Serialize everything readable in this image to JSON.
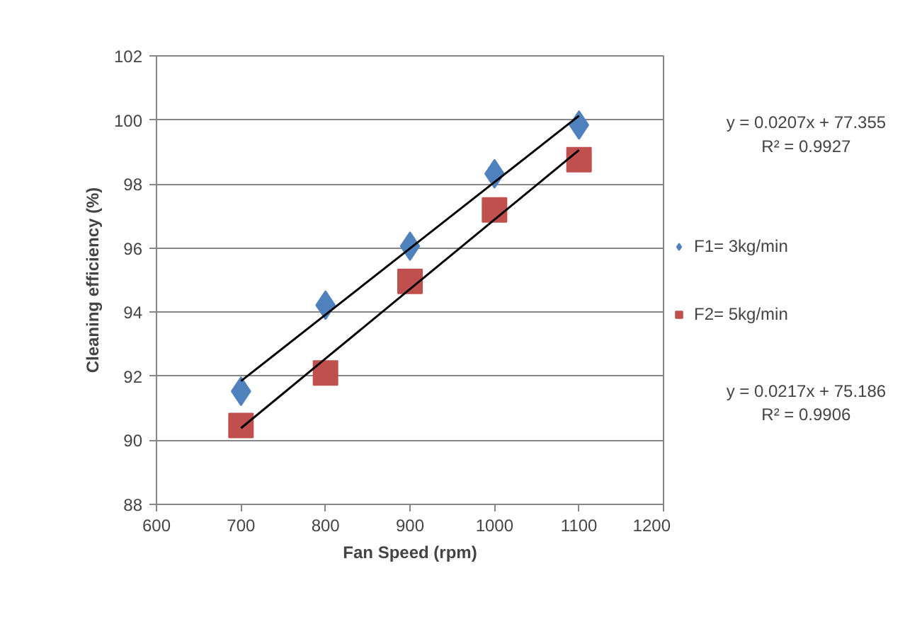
{
  "chart_data": {
    "type": "scatter",
    "xlabel": "Fan Speed (rpm)",
    "ylabel": "Cleaning efficiency (%)",
    "x": [
      700,
      800,
      900,
      1000,
      1100
    ],
    "series": [
      {
        "name": "F1= 3kg/min",
        "color": "#4f81bd",
        "marker": "diamond",
        "values": [
          91.53,
          94.22,
          96.06,
          98.32,
          99.84
        ]
      },
      {
        "name": "F2= 5kg/min",
        "color": "#c0504d",
        "marker": "square",
        "values": [
          90.46,
          92.1,
          94.96,
          97.19,
          98.76
        ]
      },
      {
        "type": "line",
        "color": "#000000",
        "values": [
          91.85,
          93.92,
          95.99,
          98.06,
          100.13
        ]
      },
      {
        "type": "line",
        "color": "#000000",
        "values": [
          90.38,
          92.55,
          94.72,
          96.89,
          99.06
        ]
      }
    ],
    "xlim": [
      600,
      1200
    ],
    "xticks": [
      600,
      700,
      800,
      900,
      1000,
      1100,
      1200
    ],
    "ylim": [
      88,
      102
    ],
    "yticks": [
      88,
      90,
      92,
      94,
      96,
      98,
      100,
      102
    ],
    "grid": "y",
    "legend": "right",
    "annotations": [
      "y = 0.0207x + 77.355\nR² = 0.9927",
      "y = 0.0217x + 75.186\nR² = 0.9906"
    ]
  }
}
